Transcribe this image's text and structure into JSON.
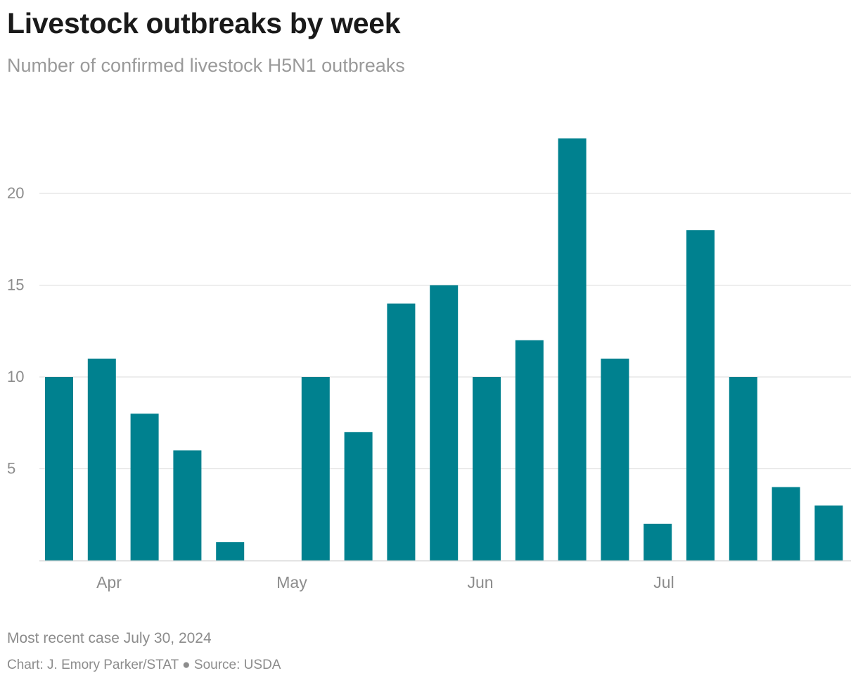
{
  "chart_data": {
    "type": "bar",
    "title": "Livestock outbreaks by week",
    "subtitle": "Number of confirmed livestock H5N1 outbreaks",
    "xlabel": "",
    "ylabel": "",
    "x_tick_labels": [
      "Apr",
      "May",
      "Jun",
      "Jul"
    ],
    "y_ticks": [
      5,
      10,
      15,
      20
    ],
    "ylim": [
      0,
      23
    ],
    "grid": true,
    "values": [
      10,
      11,
      8,
      6,
      1,
      0,
      10,
      7,
      14,
      15,
      10,
      12,
      23,
      11,
      2,
      18,
      10,
      4,
      3
    ],
    "bar_color": "#00818f"
  },
  "footer": {
    "note": "Most recent case July 30, 2024",
    "credit": "Chart: J. Emory Parker/STAT ● Source: USDA"
  }
}
